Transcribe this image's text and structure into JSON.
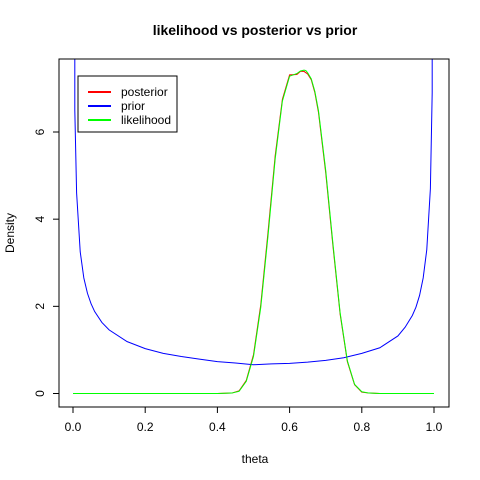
{
  "chart_data": {
    "type": "line",
    "title": "likelihood vs posterior vs prior",
    "xlabel": "theta",
    "ylabel": "Density",
    "xlim": [
      0,
      1
    ],
    "ylim": [
      0,
      7.6
    ],
    "x_ticks": [
      {
        "value": 0.0,
        "label": "0.0"
      },
      {
        "value": 0.2,
        "label": "0.2"
      },
      {
        "value": 0.4,
        "label": "0.4"
      },
      {
        "value": 0.6,
        "label": "0.6"
      },
      {
        "value": 0.8,
        "label": "0.8"
      },
      {
        "value": 1.0,
        "label": "1.0"
      }
    ],
    "y_ticks": [
      {
        "value": 0,
        "label": "0"
      },
      {
        "value": 2,
        "label": "2"
      },
      {
        "value": 4,
        "label": "4"
      },
      {
        "value": 6,
        "label": "6"
      }
    ],
    "grid": false,
    "legend_placement": "top-left",
    "series": [
      {
        "name": "posterior",
        "color": "#ff0000",
        "x": [
          0.0,
          0.05,
          0.1,
          0.15,
          0.2,
          0.25,
          0.3,
          0.35,
          0.4,
          0.44,
          0.46,
          0.48,
          0.5,
          0.52,
          0.54,
          0.56,
          0.58,
          0.6,
          0.62,
          0.63,
          0.64,
          0.65,
          0.66,
          0.67,
          0.68,
          0.7,
          0.72,
          0.74,
          0.76,
          0.78,
          0.8,
          0.82,
          0.85,
          0.9,
          0.95,
          1.0
        ],
        "y": [
          0,
          0,
          0,
          0,
          0,
          0,
          0,
          0,
          0,
          0.01,
          0.06,
          0.3,
          0.89,
          2.03,
          3.68,
          5.45,
          6.75,
          7.31,
          7.32,
          7.39,
          7.39,
          7.33,
          7.2,
          6.9,
          6.45,
          5.07,
          3.39,
          1.82,
          0.73,
          0.2,
          0.03,
          0.01,
          0,
          0,
          0,
          0
        ]
      },
      {
        "name": "prior",
        "color": "#0000ff",
        "x": [
          0.005,
          0.01,
          0.02,
          0.03,
          0.04,
          0.05,
          0.06,
          0.08,
          0.1,
          0.15,
          0.2,
          0.25,
          0.3,
          0.35,
          0.4,
          0.45,
          0.5,
          0.55,
          0.6,
          0.65,
          0.7,
          0.75,
          0.8,
          0.85,
          0.9,
          0.92,
          0.94,
          0.95,
          0.96,
          0.97,
          0.98,
          0.99,
          0.995
        ],
        "y": [
          6.5,
          4.6,
          3.25,
          2.65,
          2.3,
          2.06,
          1.88,
          1.63,
          1.46,
          1.19,
          1.03,
          0.92,
          0.85,
          0.79,
          0.73,
          0.7,
          0.66,
          0.68,
          0.69,
          0.72,
          0.76,
          0.82,
          0.92,
          1.05,
          1.32,
          1.52,
          1.79,
          1.98,
          2.25,
          2.65,
          3.3,
          4.7,
          6.9
        ]
      },
      {
        "name": "likelihood",
        "color": "#00ff00",
        "x": [
          0.0,
          0.05,
          0.1,
          0.15,
          0.2,
          0.25,
          0.3,
          0.35,
          0.4,
          0.44,
          0.46,
          0.48,
          0.5,
          0.52,
          0.54,
          0.56,
          0.58,
          0.6,
          0.62,
          0.63,
          0.64,
          0.645,
          0.65,
          0.66,
          0.67,
          0.68,
          0.7,
          0.72,
          0.74,
          0.76,
          0.78,
          0.8,
          0.82,
          0.85,
          0.9,
          0.95,
          1.0
        ],
        "y": [
          0,
          0,
          0,
          0,
          0,
          0,
          0,
          0,
          0,
          0.01,
          0.05,
          0.28,
          0.85,
          1.97,
          3.6,
          5.38,
          6.71,
          7.28,
          7.34,
          7.4,
          7.42,
          7.41,
          7.36,
          7.22,
          6.93,
          6.49,
          5.12,
          3.44,
          1.85,
          0.75,
          0.21,
          0.04,
          0.01,
          0,
          0,
          0,
          0
        ]
      }
    ]
  }
}
